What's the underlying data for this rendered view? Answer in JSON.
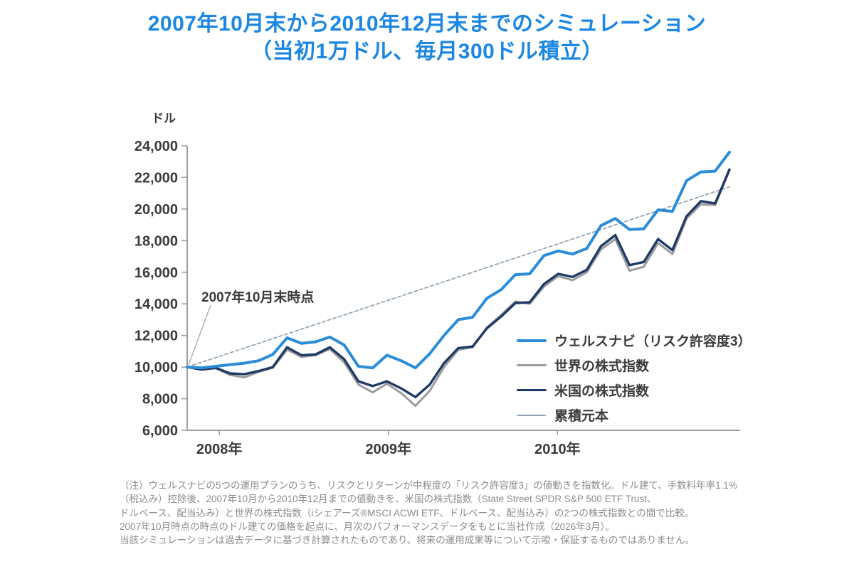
{
  "title": {
    "line1": "2007年10月末から2010年12月末までのシミュレーション",
    "line2": "（当初1万ドル、毎月300ドル積立）"
  },
  "annotation": {
    "start_point_label": "2007年10月末時点"
  },
  "legend": {
    "items": [
      {
        "key": "wealthnavi",
        "label": "ウェルスナビ（リスク許容度3）",
        "color": "#2b8cd8",
        "style": "solid",
        "thickness": 4
      },
      {
        "key": "world",
        "label": "世界の株式指数",
        "color": "#9c9c9c",
        "style": "solid",
        "thickness": 3
      },
      {
        "key": "us",
        "label": "米国の株式指数",
        "color": "#1f3a66",
        "style": "solid",
        "thickness": 3.5
      },
      {
        "key": "principal",
        "label": "累積元本",
        "color": "#8fa0b3",
        "style": "dashed",
        "thickness": 2
      }
    ]
  },
  "chart_data": {
    "type": "line",
    "title": "2007年10月末から2010年12月末までのシミュレーション（当初1万ドル、毎月300ドル積立）",
    "ylabel": "ドル",
    "ylim": [
      6000,
      24000
    ],
    "ytick_step": 2000,
    "grid": false,
    "legend_position": "inside-right",
    "x_points": 39,
    "x_range": {
      "start": "2007-10 (月末)",
      "end": "2010-12 (月末)",
      "unit": "month-end"
    },
    "x_ticks": [
      {
        "label": "2008年",
        "month_index": 2.25
      },
      {
        "label": "2009年",
        "month_index": 14.1
      },
      {
        "label": "2010年",
        "month_index": 25.95
      }
    ],
    "series": [
      {
        "key": "principal",
        "name": "累積元本",
        "color": "#8fa0b3",
        "width": 1.7,
        "dash": true,
        "values": [
          10000,
          10300,
          10600,
          10900,
          11200,
          11500,
          11800,
          12100,
          12400,
          12700,
          13000,
          13300,
          13600,
          13900,
          14200,
          14500,
          14800,
          15100,
          15400,
          15700,
          16000,
          16300,
          16600,
          16900,
          17200,
          17500,
          17800,
          18100,
          18400,
          18700,
          19000,
          19300,
          19600,
          19900,
          20200,
          20500,
          20800,
          21100,
          21400
        ]
      },
      {
        "key": "world",
        "name": "世界の株式指数",
        "color": "#9c9c9c",
        "width": 3,
        "dash": false,
        "values": [
          10000,
          9830,
          9930,
          9500,
          9350,
          9700,
          9950,
          11100,
          10650,
          10750,
          11150,
          10300,
          8900,
          8400,
          8950,
          8350,
          7550,
          8500,
          10000,
          11100,
          11250,
          12500,
          13300,
          14150,
          14000,
          15100,
          15750,
          15500,
          16000,
          17450,
          18100,
          16100,
          16350,
          17850,
          17150,
          19400,
          20300,
          20250,
          22450
        ]
      },
      {
        "key": "us",
        "name": "米国の株式指数",
        "color": "#1f3a66",
        "width": 3.4,
        "dash": false,
        "values": [
          10000,
          9850,
          9950,
          9600,
          9550,
          9750,
          10000,
          11250,
          10750,
          10800,
          11250,
          10500,
          9100,
          8800,
          9100,
          8650,
          8100,
          8900,
          10250,
          11200,
          11300,
          12450,
          13200,
          14050,
          14100,
          15250,
          15900,
          15700,
          16150,
          17650,
          18350,
          16450,
          16650,
          18100,
          17400,
          19550,
          20500,
          20350,
          22500
        ]
      },
      {
        "key": "wealthnavi",
        "name": "ウェルスナビ（リスク許容度3）",
        "color": "#2b8cd8",
        "width": 4,
        "dash": false,
        "values": [
          10000,
          9950,
          10050,
          10150,
          10250,
          10400,
          10800,
          11850,
          11500,
          11600,
          11900,
          11400,
          10050,
          9950,
          10750,
          10400,
          9950,
          10850,
          12000,
          13000,
          13150,
          14350,
          14900,
          15850,
          15900,
          17050,
          17350,
          17150,
          17500,
          18950,
          19400,
          18700,
          18750,
          19950,
          19850,
          21800,
          22350,
          22400,
          23600
        ]
      }
    ]
  },
  "footnote": {
    "lines": [
      "（注）ウェルスナビの5つの運用プランのうち、リスクとリターンが中程度の「リスク許容度3」の値動きを指数化。ドル建て、手数料年率1.1%",
      "（税込み）控除後、2007年10月から2010年12月までの値動きを、米国の株式指数（State Street SPDR S&P 500 ETF Trust、",
      "ドルベース、配当込み）と世界の株式指数（iシェアーズ®MSCI ACWI ETF、ドルベース、配当込み）の2つの株式指数との間で比較。",
      "2007年10月時点の時点のドル建ての価格を起点に、月次のパフォーマンスデータをもとに当社作成（2026年3月）。",
      "当該シミュレーションは過去データに基づき計算されたものであり、将来の運用成果等について示唆・保証するものではありません。"
    ]
  },
  "colors": {
    "title": "#1b87e2",
    "axis": "#9aa0a6",
    "tick_text": "#3b3b3b",
    "footnote_text": "#8c8c8c",
    "annotation_leader": "#b3b3b3"
  }
}
